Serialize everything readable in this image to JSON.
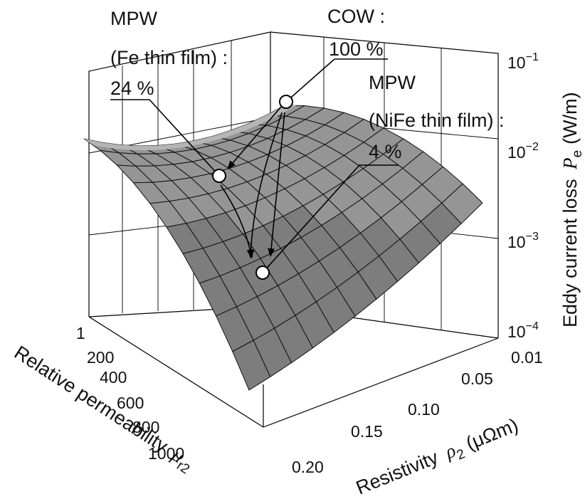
{
  "chart_data": {
    "type": "surface",
    "title": "",
    "x_axis": {
      "label_prefix": "Relative permeability",
      "label_symbol": "μ",
      "label_subscript": "r2",
      "ticks": [
        "1",
        "200",
        "400",
        "600",
        "800",
        "1000"
      ],
      "range": [
        1,
        1000
      ]
    },
    "y_axis": {
      "label_prefix": "Resistivity",
      "label_symbol": "ρ",
      "label_subscript": "2",
      "label_unit": "(μΩm)",
      "ticks": [
        "0.01",
        "0.05",
        "0.10",
        "0.15",
        "0.20"
      ],
      "range": [
        0.01,
        0.2
      ]
    },
    "z_axis": {
      "label_prefix": "Eddy current loss",
      "label_symbol": "P",
      "label_subscript": "e",
      "label_unit": "(W/m)",
      "scale": "log",
      "ticks": [
        {
          "base": "10",
          "exp": "−1",
          "value": 0.1
        },
        {
          "base": "10",
          "exp": "−2",
          "value": 0.01
        },
        {
          "base": "10",
          "exp": "−3",
          "value": 0.001
        },
        {
          "base": "10",
          "exp": "−4",
          "value": 0.0001
        }
      ],
      "range": [
        0.0001,
        0.1
      ]
    },
    "points": [
      {
        "label_lines": [
          "COW :",
          "100 %"
        ],
        "percent": 100
      },
      {
        "label_lines": [
          "MPW",
          "(Fe thin film) :",
          "24 %"
        ],
        "percent": 24
      },
      {
        "label_lines": [
          "MPW",
          "(NiFe thin film) :",
          "4 %"
        ],
        "percent": 4
      }
    ]
  }
}
